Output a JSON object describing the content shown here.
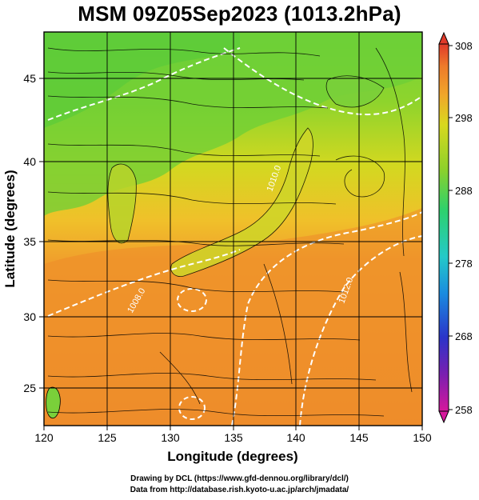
{
  "title": "MSM 09Z05Sep2023 (1013.2hPa)",
  "x_axis": {
    "label": "Longitude (degrees)",
    "ticks": [
      "120",
      "125",
      "130",
      "135",
      "140",
      "145",
      "150"
    ],
    "range": [
      120,
      150
    ]
  },
  "y_axis": {
    "label": "Latitude  (degrees)",
    "ticks": [
      "25",
      "30",
      "35",
      "40",
      "45"
    ],
    "range": [
      22.4,
      47.6
    ]
  },
  "colorbar": {
    "ticks": [
      "308",
      "298",
      "288",
      "278",
      "268",
      "258"
    ],
    "range": [
      258,
      308
    ],
    "colors": [
      "#d6189c",
      "#7a1fb0",
      "#2b34c9",
      "#1a8be0",
      "#24c9c9",
      "#2ed16b",
      "#8ed12a",
      "#d8d81e",
      "#f0a72a",
      "#ee7a2a",
      "#e03a2a"
    ]
  },
  "contours": {
    "labels": [
      "1008.0",
      "1010.0",
      "1012.0"
    ]
  },
  "credits": {
    "line1": "Drawing by DCL (https://www.gfd-dennou.org/library/dcl/)",
    "line2": "Data from http://database.rish.kyoto-u.ac.jp/arch/jmadata/"
  }
}
